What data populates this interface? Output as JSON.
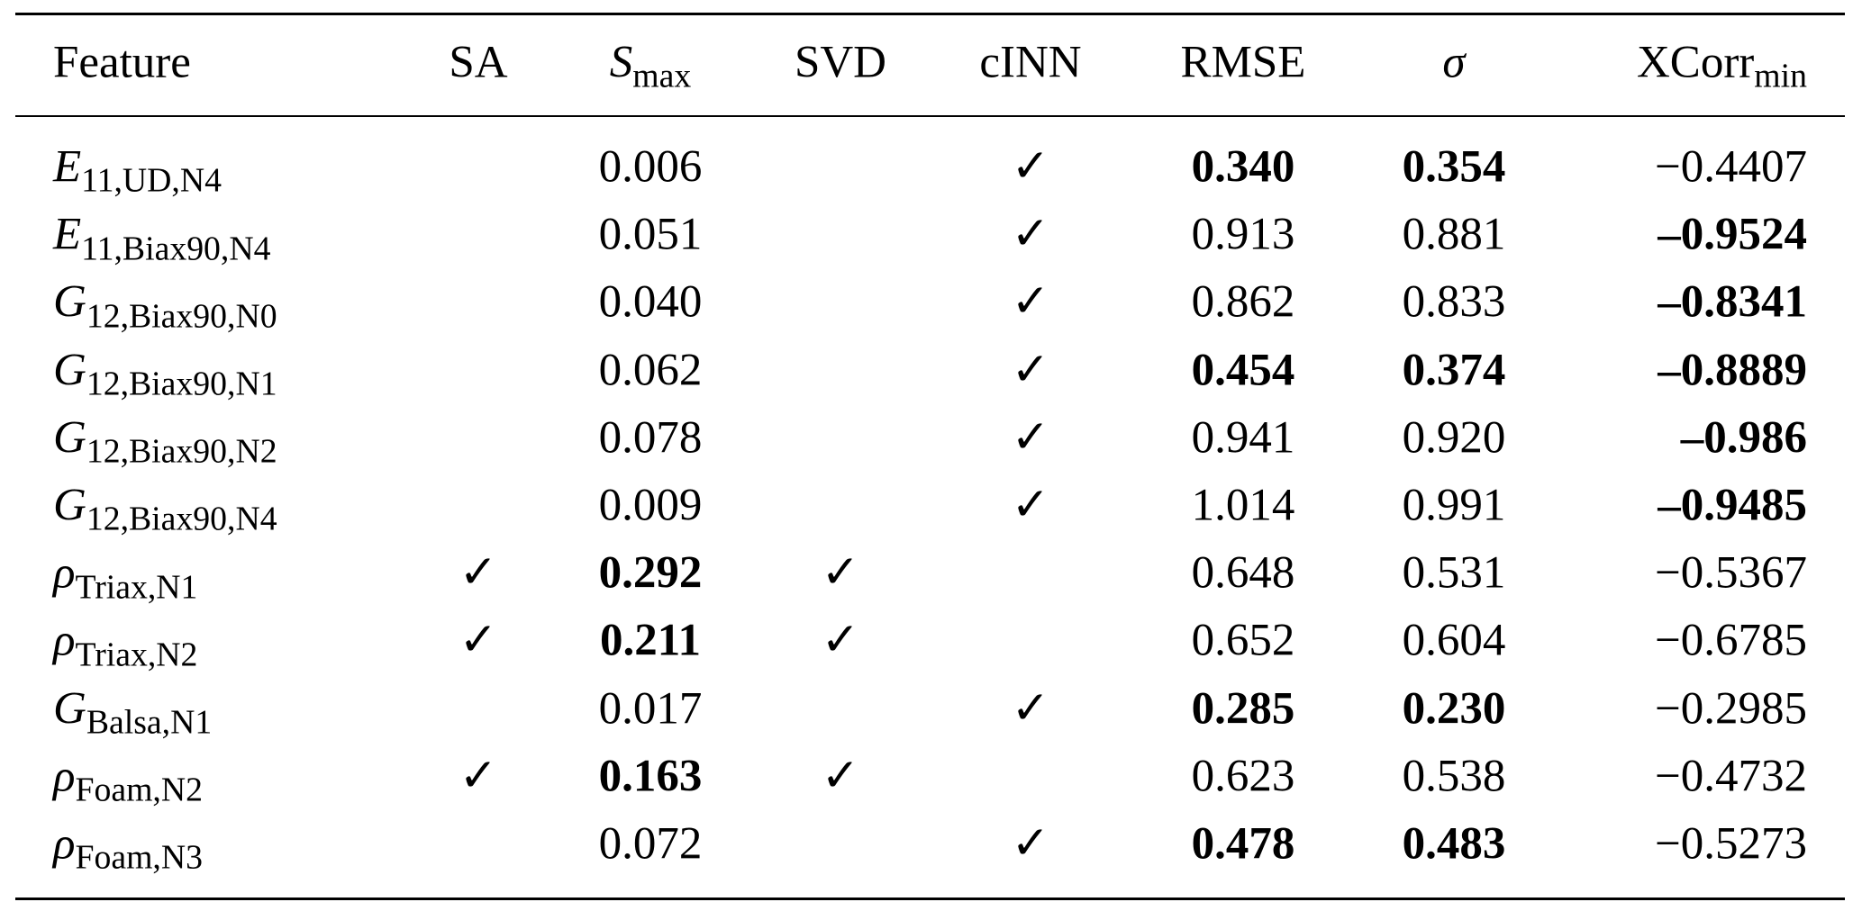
{
  "table": {
    "header": [
      {
        "text": "Feature"
      },
      {
        "text": "SA"
      },
      {
        "text": "S",
        "sub": "max",
        "italic": true
      },
      {
        "text": "SVD"
      },
      {
        "text": "cINN"
      },
      {
        "text": "RMSE"
      },
      {
        "text": "σ",
        "italic": true
      },
      {
        "text": "XCorr",
        "sub": "min"
      }
    ],
    "rows": [
      [
        {
          "text": "E",
          "sub": "11,UD,N4",
          "italic": true
        },
        null,
        {
          "text": "0.006"
        },
        null,
        {
          "text": "✓"
        },
        {
          "text": "0.340",
          "bold": true
        },
        {
          "text": "0.354",
          "bold": true
        },
        {
          "text": "−0.4407"
        }
      ],
      [
        {
          "text": "E",
          "sub": "11,Biax90,N4",
          "italic": true
        },
        null,
        {
          "text": "0.051"
        },
        null,
        {
          "text": "✓"
        },
        {
          "text": "0.913"
        },
        {
          "text": "0.881"
        },
        {
          "text": "–0.9524",
          "bold": true
        }
      ],
      [
        {
          "text": "G",
          "sub": "12,Biax90,N0",
          "italic": true
        },
        null,
        {
          "text": "0.040"
        },
        null,
        {
          "text": "✓"
        },
        {
          "text": "0.862"
        },
        {
          "text": "0.833"
        },
        {
          "text": "–0.8341",
          "bold": true
        }
      ],
      [
        {
          "text": "G",
          "sub": "12,Biax90,N1",
          "italic": true
        },
        null,
        {
          "text": "0.062"
        },
        null,
        {
          "text": "✓"
        },
        {
          "text": "0.454",
          "bold": true
        },
        {
          "text": "0.374",
          "bold": true
        },
        {
          "text": "–0.8889",
          "bold": true
        }
      ],
      [
        {
          "text": "G",
          "sub": "12,Biax90,N2",
          "italic": true
        },
        null,
        {
          "text": "0.078"
        },
        null,
        {
          "text": "✓"
        },
        {
          "text": "0.941"
        },
        {
          "text": "0.920"
        },
        {
          "text": "–0.986",
          "bold": true
        }
      ],
      [
        {
          "text": "G",
          "sub": "12,Biax90,N4",
          "italic": true
        },
        null,
        {
          "text": "0.009"
        },
        null,
        {
          "text": "✓"
        },
        {
          "text": "1.014"
        },
        {
          "text": "0.991"
        },
        {
          "text": "–0.9485",
          "bold": true
        }
      ],
      [
        {
          "text": "ρ",
          "sub": "Triax,N1",
          "italic": true
        },
        {
          "text": "✓"
        },
        {
          "text": "0.292",
          "bold": true
        },
        {
          "text": "✓"
        },
        null,
        {
          "text": "0.648"
        },
        {
          "text": "0.531"
        },
        {
          "text": "−0.5367"
        }
      ],
      [
        {
          "text": "ρ",
          "sub": "Triax,N2",
          "italic": true
        },
        {
          "text": "✓"
        },
        {
          "text": "0.211",
          "bold": true
        },
        {
          "text": "✓"
        },
        null,
        {
          "text": "0.652"
        },
        {
          "text": "0.604"
        },
        {
          "text": "−0.6785"
        }
      ],
      [
        {
          "text": "G",
          "sub": "Balsa,N1",
          "italic": true
        },
        null,
        {
          "text": "0.017"
        },
        null,
        {
          "text": "✓"
        },
        {
          "text": "0.285",
          "bold": true
        },
        {
          "text": "0.230",
          "bold": true
        },
        {
          "text": "−0.2985"
        }
      ],
      [
        {
          "text": "ρ",
          "sub": "Foam,N2",
          "italic": true
        },
        {
          "text": "✓"
        },
        {
          "text": "0.163",
          "bold": true
        },
        {
          "text": "✓"
        },
        null,
        {
          "text": "0.623"
        },
        {
          "text": "0.538"
        },
        {
          "text": "−0.4732"
        }
      ],
      [
        {
          "text": "ρ",
          "sub": "Foam,N3",
          "italic": true
        },
        null,
        {
          "text": "0.072"
        },
        null,
        {
          "text": "✓"
        },
        {
          "text": "0.478",
          "bold": true
        },
        {
          "text": "0.483",
          "bold": true
        },
        {
          "text": "−0.5273"
        }
      ]
    ]
  }
}
